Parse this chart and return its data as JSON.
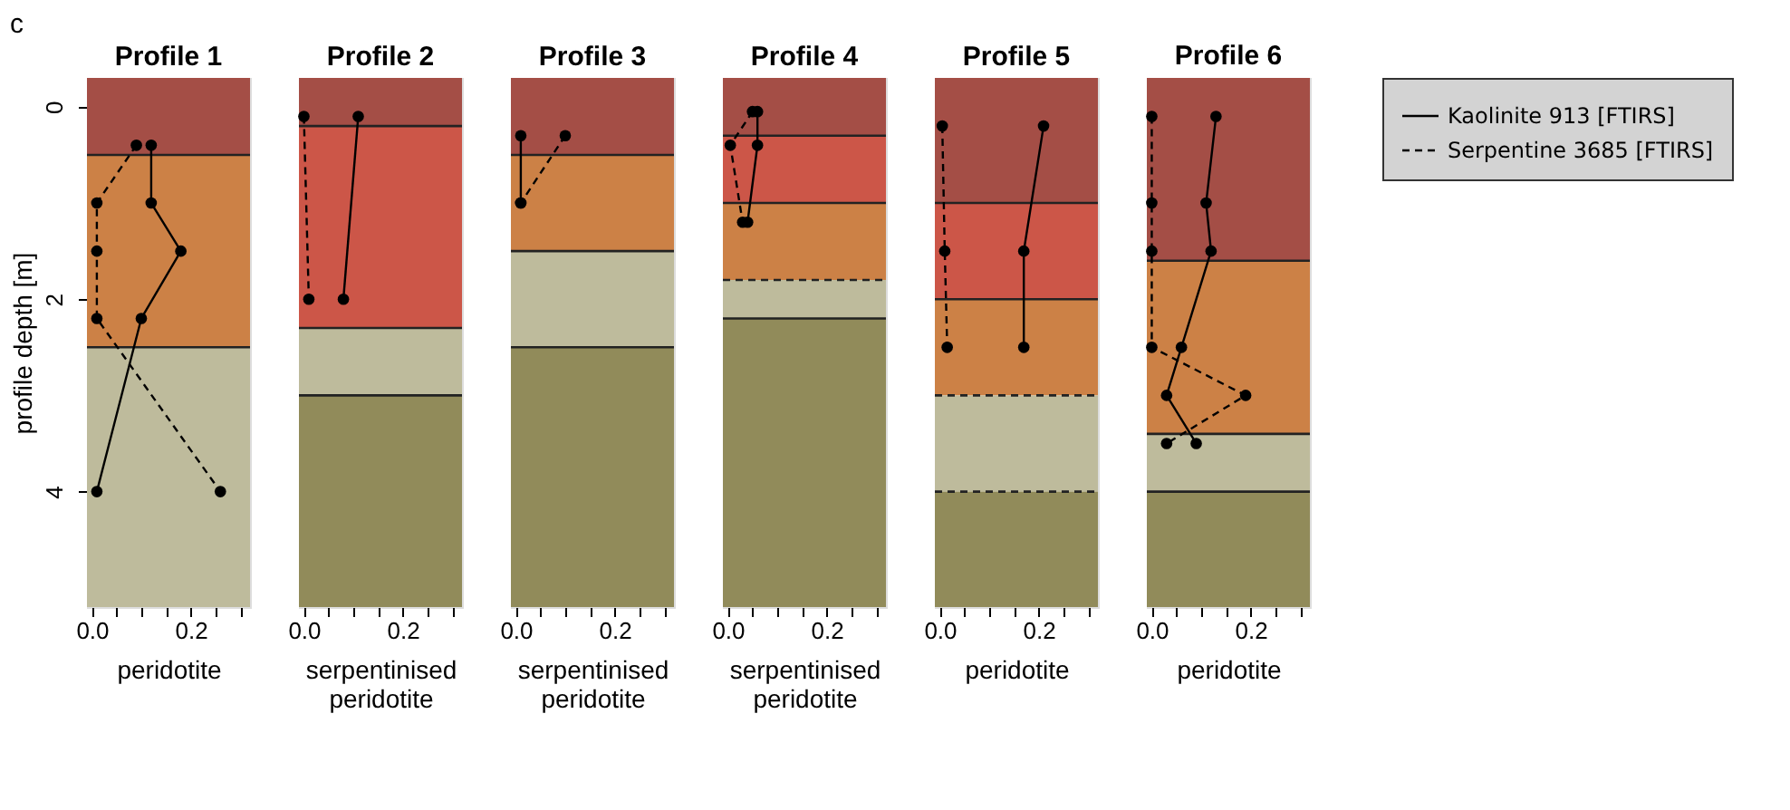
{
  "chart_data": [
    {
      "type": "line",
      "title": "Profile 1",
      "xlabel": "peridotite",
      "ylabel": "profile depth [m]",
      "annotations": [
        "c"
      ],
      "xlim": [
        -0.01,
        0.32
      ],
      "xticks": [
        {
          "value": 0,
          "label": "0.0"
        },
        {
          "value": 0.05,
          "label": null
        },
        {
          "value": 0.1,
          "label": null
        },
        {
          "value": 0.15,
          "label": null
        },
        {
          "value": 0.2,
          "label": "0.2"
        },
        {
          "value": 0.25,
          "label": null
        },
        {
          "value": 0.3,
          "label": null
        }
      ],
      "ylim": [
        5.2,
        -0.3
      ],
      "yticks": [
        0,
        2,
        4
      ],
      "marker": "circle",
      "bands": [
        {
          "axis": "y",
          "from": -0.3,
          "to": 0.5,
          "color": "#a44e46"
        },
        {
          "axis": "y",
          "from": 0.5,
          "to": 2.5,
          "color": "#cc8146"
        },
        {
          "axis": "y",
          "from": 2.5,
          "to": 5.2,
          "color": "#bebb9c"
        }
      ],
      "ref_lines": [
        {
          "axis": "y",
          "value": 0.5,
          "color": "#222222",
          "line_style": "solid"
        },
        {
          "axis": "y",
          "value": 2.5,
          "color": "#222222",
          "line_style": "solid"
        }
      ],
      "series": [
        {
          "color": "#000000",
          "line_style": "solid",
          "x": [
            0.12,
            0.12,
            0.18,
            0.1,
            0.01
          ],
          "values": [
            0.4,
            1.0,
            1.5,
            2.2,
            4.0
          ]
        },
        {
          "color": "#000000",
          "line_style": "dashed",
          "x": [
            0.09,
            0.01,
            0.01,
            0.01,
            0.26
          ],
          "values": [
            0.4,
            1.0,
            1.5,
            2.2,
            4.0
          ]
        }
      ]
    },
    {
      "type": "line",
      "title": "Profile 2",
      "xlabel": "serpentinised peridotite",
      "tick_labels": "x",
      "xlim": [
        -0.01,
        0.32
      ],
      "xticks": [
        {
          "value": 0,
          "label": "0.0"
        },
        {
          "value": 0.05,
          "label": null
        },
        {
          "value": 0.1,
          "label": null
        },
        {
          "value": 0.15,
          "label": null
        },
        {
          "value": 0.2,
          "label": "0.2"
        },
        {
          "value": 0.25,
          "label": null
        },
        {
          "value": 0.3,
          "label": null
        }
      ],
      "ylim": [
        5.2,
        -0.3
      ],
      "marker": "circle",
      "bands": [
        {
          "axis": "y",
          "from": -0.3,
          "to": 0.2,
          "color": "#a44e46"
        },
        {
          "axis": "y",
          "from": 0.2,
          "to": 2.3,
          "color": "#cc5648"
        },
        {
          "axis": "y",
          "from": 2.3,
          "to": 3.0,
          "color": "#bebb9c"
        },
        {
          "axis": "y",
          "from": 3.0,
          "to": 5.2,
          "color": "#918b5a"
        }
      ],
      "ref_lines": [
        {
          "axis": "y",
          "value": 0.2,
          "color": "#222222",
          "line_style": "solid"
        },
        {
          "axis": "y",
          "value": 2.3,
          "color": "#222222",
          "line_style": "solid"
        },
        {
          "axis": "y",
          "value": 3.0,
          "color": "#222222",
          "line_style": "solid"
        }
      ],
      "series": [
        {
          "color": "#000000",
          "line_style": "solid",
          "x": [
            0.11,
            0.08
          ],
          "values": [
            0.1,
            2.0
          ]
        },
        {
          "color": "#000000",
          "line_style": "dashed",
          "x": [
            0.0,
            0.01
          ],
          "values": [
            0.1,
            2.0
          ]
        }
      ]
    },
    {
      "type": "line",
      "title": "Profile 3",
      "xlabel": "serpentinised peridotite",
      "tick_labels": "x",
      "xlim": [
        -0.01,
        0.32
      ],
      "xticks": [
        {
          "value": 0,
          "label": "0.0"
        },
        {
          "value": 0.05,
          "label": null
        },
        {
          "value": 0.1,
          "label": null
        },
        {
          "value": 0.15,
          "label": null
        },
        {
          "value": 0.2,
          "label": "0.2"
        },
        {
          "value": 0.25,
          "label": null
        },
        {
          "value": 0.3,
          "label": null
        }
      ],
      "ylim": [
        5.2,
        -0.3
      ],
      "marker": "circle",
      "bands": [
        {
          "axis": "y",
          "from": -0.3,
          "to": 0.5,
          "color": "#a44e46"
        },
        {
          "axis": "y",
          "from": 0.5,
          "to": 1.5,
          "color": "#cc8146"
        },
        {
          "axis": "y",
          "from": 1.5,
          "to": 2.5,
          "color": "#bebb9c"
        },
        {
          "axis": "y",
          "from": 2.5,
          "to": 5.2,
          "color": "#918b5a"
        }
      ],
      "ref_lines": [
        {
          "axis": "y",
          "value": 0.5,
          "color": "#222222",
          "line_style": "solid"
        },
        {
          "axis": "y",
          "value": 1.5,
          "color": "#222222",
          "line_style": "solid"
        },
        {
          "axis": "y",
          "value": 2.5,
          "color": "#222222",
          "line_style": "solid"
        }
      ],
      "series": [
        {
          "color": "#000000",
          "line_style": "solid",
          "x": [
            0.01,
            0.01
          ],
          "values": [
            0.3,
            1.0
          ]
        },
        {
          "color": "#000000",
          "line_style": "dashed",
          "x": [
            0.1,
            0.01
          ],
          "values": [
            0.3,
            1.0
          ]
        }
      ]
    },
    {
      "type": "line",
      "title": "Profile 4",
      "xlabel": "serpentinised peridotite",
      "tick_labels": "x",
      "xlim": [
        -0.01,
        0.32
      ],
      "xticks": [
        {
          "value": 0,
          "label": "0.0"
        },
        {
          "value": 0.05,
          "label": null
        },
        {
          "value": 0.1,
          "label": null
        },
        {
          "value": 0.15,
          "label": null
        },
        {
          "value": 0.2,
          "label": "0.2"
        },
        {
          "value": 0.25,
          "label": null
        },
        {
          "value": 0.3,
          "label": null
        }
      ],
      "ylim": [
        5.2,
        -0.3
      ],
      "marker": "circle",
      "bands": [
        {
          "axis": "y",
          "from": -0.3,
          "to": 0.3,
          "color": "#a44e46"
        },
        {
          "axis": "y",
          "from": 0.3,
          "to": 1.0,
          "color": "#cc5648"
        },
        {
          "axis": "y",
          "from": 1.0,
          "to": 1.8,
          "color": "#cc8146"
        },
        {
          "axis": "y",
          "from": 1.8,
          "to": 2.2,
          "color": "#bebb9c"
        },
        {
          "axis": "y",
          "from": 2.2,
          "to": 5.2,
          "color": "#918b5a"
        }
      ],
      "ref_lines": [
        {
          "axis": "y",
          "value": 0.3,
          "color": "#222222",
          "line_style": "solid"
        },
        {
          "axis": "y",
          "value": 1.0,
          "color": "#222222",
          "line_style": "solid"
        },
        {
          "axis": "y",
          "value": 1.8,
          "color": "#222222",
          "line_style": "dashed"
        },
        {
          "axis": "y",
          "value": 2.2,
          "color": "#222222",
          "line_style": "solid"
        }
      ],
      "series": [
        {
          "color": "#000000",
          "line_style": "solid",
          "x": [
            0.06,
            0.06,
            0.04
          ],
          "values": [
            0.05,
            0.4,
            1.2
          ]
        },
        {
          "color": "#000000",
          "line_style": "dashed",
          "x": [
            0.05,
            0.005,
            0.03
          ],
          "values": [
            0.05,
            0.4,
            1.2
          ]
        }
      ]
    },
    {
      "type": "line",
      "title": "Profile 5",
      "xlabel": "peridotite",
      "tick_labels": "x",
      "xlim": [
        -0.01,
        0.32
      ],
      "xticks": [
        {
          "value": 0,
          "label": "0.0"
        },
        {
          "value": 0.05,
          "label": null
        },
        {
          "value": 0.1,
          "label": null
        },
        {
          "value": 0.15,
          "label": null
        },
        {
          "value": 0.2,
          "label": "0.2"
        },
        {
          "value": 0.25,
          "label": null
        },
        {
          "value": 0.3,
          "label": null
        }
      ],
      "ylim": [
        5.2,
        -0.3
      ],
      "marker": "circle",
      "bands": [
        {
          "axis": "y",
          "from": -0.3,
          "to": 1.0,
          "color": "#a44e46"
        },
        {
          "axis": "y",
          "from": 1.0,
          "to": 2.0,
          "color": "#cc5648"
        },
        {
          "axis": "y",
          "from": 2.0,
          "to": 3.0,
          "color": "#cc8146"
        },
        {
          "axis": "y",
          "from": 3.0,
          "to": 4.0,
          "color": "#bebb9c"
        },
        {
          "axis": "y",
          "from": 4.0,
          "to": 5.2,
          "color": "#918b5a"
        }
      ],
      "ref_lines": [
        {
          "axis": "y",
          "value": 1.0,
          "color": "#222222",
          "line_style": "solid"
        },
        {
          "axis": "y",
          "value": 2.0,
          "color": "#222222",
          "line_style": "solid"
        },
        {
          "axis": "y",
          "value": 3.0,
          "color": "#222222",
          "line_style": "dashed"
        },
        {
          "axis": "y",
          "value": 4.0,
          "color": "#222222",
          "line_style": "dashed"
        }
      ],
      "series": [
        {
          "color": "#000000",
          "line_style": "solid",
          "x": [
            0.21,
            0.17,
            0.17
          ],
          "values": [
            0.2,
            1.5,
            2.5
          ]
        },
        {
          "color": "#000000",
          "line_style": "dashed",
          "x": [
            0.005,
            0.01,
            0.015
          ],
          "values": [
            0.2,
            1.5,
            2.5
          ]
        }
      ]
    },
    {
      "type": "line",
      "title": "Profile 6",
      "xlabel": "peridotite",
      "tick_labels": "x",
      "legend": "right",
      "xlim": [
        -0.01,
        0.32
      ],
      "xticks": [
        {
          "value": 0,
          "label": "0.0"
        },
        {
          "value": 0.05,
          "label": null
        },
        {
          "value": 0.1,
          "label": null
        },
        {
          "value": 0.15,
          "label": null
        },
        {
          "value": 0.2,
          "label": "0.2"
        },
        {
          "value": 0.25,
          "label": null
        },
        {
          "value": 0.3,
          "label": null
        }
      ],
      "ylim": [
        5.2,
        -0.3
      ],
      "marker": "circle",
      "bands": [
        {
          "axis": "y",
          "from": -0.3,
          "to": 1.6,
          "color": "#a44e46"
        },
        {
          "axis": "y",
          "from": 1.6,
          "to": 3.4,
          "color": "#cc8146"
        },
        {
          "axis": "y",
          "from": 3.4,
          "to": 4.0,
          "color": "#bebb9c"
        },
        {
          "axis": "y",
          "from": 4.0,
          "to": 5.2,
          "color": "#918b5a"
        }
      ],
      "ref_lines": [
        {
          "axis": "y",
          "value": 1.6,
          "color": "#222222",
          "line_style": "solid"
        },
        {
          "axis": "y",
          "value": 3.4,
          "color": "#222222",
          "line_style": "solid"
        },
        {
          "axis": "y",
          "value": 4.0,
          "color": "#222222",
          "line_style": "solid"
        }
      ],
      "series": [
        {
          "name": "Kaolinite 913 [FTIRS]",
          "color": "#000000",
          "line_style": "solid",
          "x": [
            0.13,
            0.11,
            0.12,
            0.06,
            0.03,
            0.09
          ],
          "values": [
            0.1,
            1.0,
            1.5,
            2.5,
            3.0,
            3.5
          ]
        },
        {
          "name": "Serpentine 3685 [FTIRS]",
          "color": "#000000",
          "line_style": "dashed",
          "x": [
            0.0,
            0.0,
            0.0,
            0.0,
            0.19,
            0.03
          ],
          "values": [
            0.1,
            1.0,
            1.5,
            2.5,
            3.0,
            3.5
          ]
        }
      ]
    }
  ]
}
